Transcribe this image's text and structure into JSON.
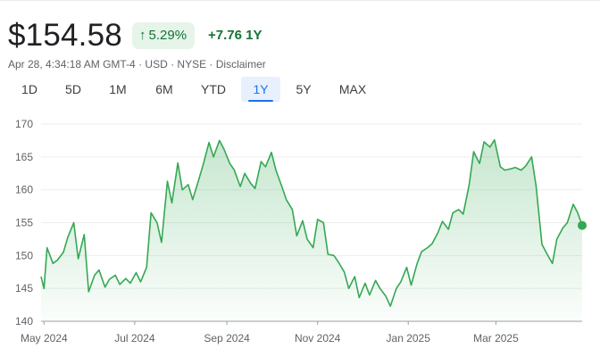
{
  "quote": {
    "price": "$154.58",
    "change_pct": "5.29%",
    "change_abs": "+7.76",
    "period": "1Y",
    "meta": "Apr 28, 4:34:18 AM GMT-4 · USD · NYSE · Disclaimer",
    "arrow_icon": "arrow-up-icon",
    "positive_color": "#137333"
  },
  "tabs": [
    {
      "label": "1D",
      "active": false
    },
    {
      "label": "5D",
      "active": false
    },
    {
      "label": "1M",
      "active": false
    },
    {
      "label": "6M",
      "active": false
    },
    {
      "label": "YTD",
      "active": false
    },
    {
      "label": "1Y",
      "active": true
    },
    {
      "label": "5Y",
      "active": false
    },
    {
      "label": "MAX",
      "active": false
    }
  ],
  "chart_data": {
    "type": "area",
    "title": "",
    "xlabel": "",
    "ylabel": "",
    "ylim": [
      140,
      170
    ],
    "yticks": [
      140,
      145,
      150,
      155,
      160,
      165,
      170
    ],
    "xticks": [
      "May 2024",
      "Jul 2024",
      "Sep 2024",
      "Nov 2024",
      "Jan 2025",
      "Mar 2025"
    ],
    "grid": true,
    "line_color": "#34a853",
    "x_start": "2024-04-29",
    "x_end": "2025-04-28",
    "series": [
      {
        "x": [
          "2024-04-29",
          "2024-05-01",
          "2024-05-03",
          "2024-05-07",
          "2024-05-10",
          "2024-05-14",
          "2024-05-17",
          "2024-05-21",
          "2024-05-24",
          "2024-05-28",
          "2024-05-31",
          "2024-06-04",
          "2024-06-07",
          "2024-06-11",
          "2024-06-14",
          "2024-06-18",
          "2024-06-21",
          "2024-06-25",
          "2024-06-28",
          "2024-07-02",
          "2024-07-05",
          "2024-07-09",
          "2024-07-12",
          "2024-07-16",
          "2024-07-19",
          "2024-07-23",
          "2024-07-26",
          "2024-07-30",
          "2024-08-02",
          "2024-08-06",
          "2024-08-09",
          "2024-08-13",
          "2024-08-16",
          "2024-08-20",
          "2024-08-23",
          "2024-08-27",
          "2024-08-30",
          "2024-09-03",
          "2024-09-06",
          "2024-09-10",
          "2024-09-13",
          "2024-09-17",
          "2024-09-20",
          "2024-09-24",
          "2024-09-27",
          "2024-10-01",
          "2024-10-04",
          "2024-10-08",
          "2024-10-11",
          "2024-10-15",
          "2024-10-18",
          "2024-10-22",
          "2024-10-25",
          "2024-10-29",
          "2024-11-01",
          "2024-11-05",
          "2024-11-08",
          "2024-11-12",
          "2024-11-15",
          "2024-11-19",
          "2024-11-22",
          "2024-11-26",
          "2024-11-29",
          "2024-12-03",
          "2024-12-06",
          "2024-12-10",
          "2024-12-13",
          "2024-12-17",
          "2024-12-20",
          "2024-12-24",
          "2024-12-27",
          "2024-12-31",
          "2025-01-03",
          "2025-01-07",
          "2025-01-10",
          "2025-01-14",
          "2025-01-17",
          "2025-01-21",
          "2025-01-24",
          "2025-01-28",
          "2025-01-31",
          "2025-02-04",
          "2025-02-07",
          "2025-02-11",
          "2025-02-14",
          "2025-02-18",
          "2025-02-21",
          "2025-02-25",
          "2025-02-28",
          "2025-03-04",
          "2025-03-07",
          "2025-03-11",
          "2025-03-14",
          "2025-03-18",
          "2025-03-21",
          "2025-03-25",
          "2025-03-28",
          "2025-04-01",
          "2025-04-04",
          "2025-04-08",
          "2025-04-11",
          "2025-04-15",
          "2025-04-18",
          "2025-04-22",
          "2025-04-25",
          "2025-04-28"
        ],
        "y": [
          146.8,
          145.0,
          151.2,
          148.8,
          149.3,
          150.5,
          152.8,
          155.0,
          149.5,
          153.2,
          144.5,
          147.0,
          147.8,
          145.2,
          146.4,
          147.0,
          145.6,
          146.5,
          145.8,
          147.4,
          146.0,
          148.2,
          156.5,
          155.0,
          152.0,
          161.3,
          158.0,
          164.1,
          160.0,
          160.8,
          158.5,
          161.5,
          163.8,
          167.2,
          165.0,
          167.5,
          166.2,
          164.0,
          163.0,
          160.5,
          162.5,
          161.0,
          160.2,
          164.3,
          163.5,
          165.7,
          163.0,
          160.5,
          158.5,
          157.0,
          153.0,
          155.3,
          152.5,
          151.2,
          155.5,
          155.0,
          150.2,
          150.0,
          149.0,
          147.5,
          145.0,
          146.8,
          143.6,
          145.8,
          144.0,
          146.2,
          145.0,
          143.8,
          142.3,
          145.0,
          146.0,
          148.2,
          145.5,
          148.8,
          150.6,
          151.2,
          151.8,
          153.5,
          155.2,
          154.0,
          156.5,
          157.0,
          156.3,
          160.8,
          165.8,
          164.0,
          167.3,
          166.5,
          167.6,
          163.5,
          163.0,
          163.2,
          163.4,
          163.0,
          163.6,
          165.0,
          160.6,
          151.7,
          150.4,
          148.8,
          152.5,
          154.2,
          155.0,
          157.8,
          156.5,
          154.58
        ]
      }
    ]
  }
}
